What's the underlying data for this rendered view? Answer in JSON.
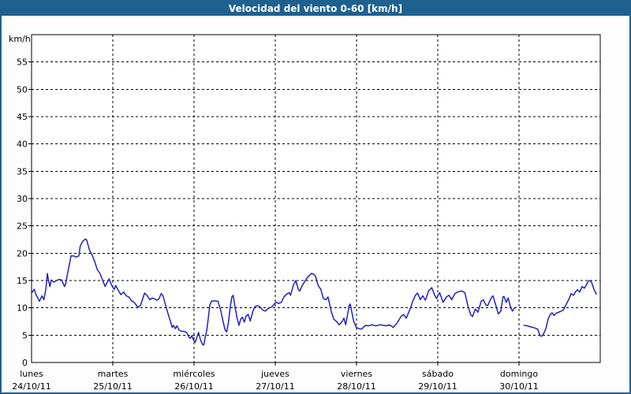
{
  "window": {
    "titlebar_color": "#1f618e",
    "border_color": "#1f618e",
    "background_color": "#fcfdfc"
  },
  "chart_data": {
    "type": "line",
    "title": "Velocidad del viento 0-60 [km/h]",
    "ylabel": "km/h",
    "xlabel": "",
    "ylim": [
      0,
      60
    ],
    "yticks": [
      0,
      5,
      10,
      15,
      20,
      25,
      30,
      35,
      40,
      45,
      50,
      55
    ],
    "xlim_days": [
      0,
      7
    ],
    "x_ticks": [
      {
        "day": 0,
        "label": "lunes",
        "date": "24/10/11"
      },
      {
        "day": 1,
        "label": "martes",
        "date": "25/10/11"
      },
      {
        "day": 2,
        "label": "miércoles",
        "date": "26/10/11"
      },
      {
        "day": 3,
        "label": "jueves",
        "date": "27/10/11"
      },
      {
        "day": 4,
        "label": "viernes",
        "date": "28/10/11"
      },
      {
        "day": 5,
        "label": "sábado",
        "date": "29/10/11"
      },
      {
        "day": 6,
        "label": "domingo",
        "date": "30/10/11"
      }
    ],
    "grid": true,
    "legend": "none",
    "line_color": "#2222bb",
    "plot_background": "#ffffff",
    "series": [
      {
        "name": "velocidad del viento",
        "unit": "km/h",
        "segments": [
          [
            [
              0.0,
              12.7
            ],
            [
              0.032,
              13.4
            ],
            [
              0.055,
              12.4
            ],
            [
              0.081,
              11.7
            ],
            [
              0.097,
              11.2
            ],
            [
              0.129,
              12.2
            ],
            [
              0.152,
              11.5
            ],
            [
              0.178,
              13.6
            ],
            [
              0.194,
              16.3
            ],
            [
              0.211,
              14.9
            ],
            [
              0.226,
              13.9
            ],
            [
              0.243,
              15.1
            ],
            [
              0.275,
              14.7
            ],
            [
              0.308,
              15.0
            ],
            [
              0.34,
              15.2
            ],
            [
              0.372,
              15.1
            ],
            [
              0.405,
              13.9
            ],
            [
              0.42,
              14.4
            ],
            [
              0.437,
              15.8
            ],
            [
              0.469,
              18.2
            ],
            [
              0.485,
              19.5
            ],
            [
              0.517,
              19.5
            ],
            [
              0.55,
              19.3
            ],
            [
              0.583,
              19.5
            ],
            [
              0.599,
              21.3
            ],
            [
              0.631,
              22.2
            ],
            [
              0.663,
              22.6
            ],
            [
              0.68,
              22.4
            ],
            [
              0.712,
              20.6
            ],
            [
              0.745,
              19.7
            ],
            [
              0.777,
              18.5
            ],
            [
              0.809,
              17.0
            ],
            [
              0.842,
              16.3
            ],
            [
              0.874,
              15.1
            ],
            [
              0.906,
              13.9
            ],
            [
              0.939,
              14.9
            ],
            [
              0.954,
              15.3
            ],
            [
              0.987,
              14.1
            ],
            [
              1.003,
              13.7
            ],
            [
              1.019,
              13.4
            ],
            [
              1.036,
              14.1
            ],
            [
              1.068,
              13.2
            ],
            [
              1.1,
              12.4
            ],
            [
              1.133,
              12.9
            ],
            [
              1.165,
              12.2
            ],
            [
              1.197,
              12.0
            ],
            [
              1.23,
              11.3
            ],
            [
              1.262,
              11.0
            ],
            [
              1.311,
              10.1
            ],
            [
              1.343,
              10.5
            ],
            [
              1.391,
              12.7
            ],
            [
              1.424,
              12.2
            ],
            [
              1.456,
              11.5
            ],
            [
              1.489,
              11.8
            ],
            [
              1.521,
              11.6
            ],
            [
              1.546,
              11.4
            ],
            [
              1.57,
              11.7
            ],
            [
              1.595,
              12.6
            ],
            [
              1.618,
              12.2
            ],
            [
              1.65,
              10.5
            ],
            [
              1.683,
              8.8
            ],
            [
              1.715,
              7.3
            ],
            [
              1.731,
              6.4
            ],
            [
              1.748,
              6.8
            ],
            [
              1.77,
              6.2
            ],
            [
              1.789,
              6.7
            ],
            [
              1.813,
              6.0
            ],
            [
              1.845,
              5.7
            ],
            [
              1.877,
              5.7
            ],
            [
              1.91,
              5.5
            ],
            [
              1.932,
              4.8
            ],
            [
              1.951,
              4.4
            ],
            [
              1.974,
              4.9
            ],
            [
              1.99,
              4.2
            ],
            [
              2.016,
              3.7
            ],
            [
              2.039,
              4.8
            ],
            [
              2.055,
              5.5
            ],
            [
              2.081,
              4.1
            ],
            [
              2.104,
              3.3
            ],
            [
              2.119,
              3.2
            ],
            [
              2.136,
              4.5
            ],
            [
              2.158,
              6.0
            ],
            [
              2.178,
              8.4
            ],
            [
              2.194,
              10.5
            ],
            [
              2.214,
              11.2
            ],
            [
              2.246,
              11.3
            ],
            [
              2.294,
              11.2
            ],
            [
              2.327,
              9.6
            ],
            [
              2.359,
              7.4
            ],
            [
              2.382,
              6.0
            ],
            [
              2.401,
              5.6
            ],
            [
              2.424,
              7.4
            ],
            [
              2.447,
              10.3
            ],
            [
              2.466,
              12.0
            ],
            [
              2.483,
              12.3
            ],
            [
              2.505,
              10.1
            ],
            [
              2.531,
              8.1
            ],
            [
              2.553,
              6.8
            ],
            [
              2.576,
              8.0
            ],
            [
              2.595,
              8.3
            ],
            [
              2.618,
              7.4
            ],
            [
              2.641,
              8.5
            ],
            [
              2.667,
              8.8
            ],
            [
              2.692,
              7.6
            ],
            [
              2.725,
              9.4
            ],
            [
              2.748,
              10.2
            ],
            [
              2.78,
              10.4
            ],
            [
              2.812,
              10.2
            ],
            [
              2.845,
              9.6
            ],
            [
              2.877,
              9.4
            ],
            [
              2.913,
              9.9
            ],
            [
              2.961,
              10.2
            ],
            [
              2.993,
              10.8
            ],
            [
              3.01,
              11.0
            ],
            [
              3.042,
              10.8
            ],
            [
              3.075,
              11.0
            ],
            [
              3.107,
              12.0
            ],
            [
              3.139,
              12.5
            ],
            [
              3.172,
              12.8
            ],
            [
              3.188,
              12.3
            ],
            [
              3.221,
              14.1
            ],
            [
              3.252,
              15.0
            ],
            [
              3.285,
              13.3
            ],
            [
              3.301,
              13.1
            ],
            [
              3.333,
              14.1
            ],
            [
              3.366,
              14.9
            ],
            [
              3.398,
              15.6
            ],
            [
              3.43,
              16.1
            ],
            [
              3.447,
              16.3
            ],
            [
              3.479,
              16.1
            ],
            [
              3.495,
              15.8
            ],
            [
              3.527,
              14.1
            ],
            [
              3.56,
              13.4
            ],
            [
              3.592,
              11.7
            ],
            [
              3.624,
              11.5
            ],
            [
              3.65,
              12.0
            ],
            [
              3.689,
              9.3
            ],
            [
              3.721,
              7.9
            ],
            [
              3.754,
              7.5
            ],
            [
              3.786,
              6.9
            ],
            [
              3.818,
              7.4
            ],
            [
              3.845,
              8.1
            ],
            [
              3.867,
              6.9
            ],
            [
              3.91,
              10.4
            ],
            [
              3.922,
              10.7
            ],
            [
              3.964,
              7.6
            ],
            [
              3.997,
              6.4
            ],
            [
              4.029,
              6.2
            ],
            [
              4.061,
              6.1
            ],
            [
              4.11,
              6.8
            ],
            [
              4.146,
              6.7
            ],
            [
              4.191,
              6.9
            ],
            [
              4.24,
              6.7
            ],
            [
              4.288,
              6.9
            ],
            [
              4.337,
              6.8
            ],
            [
              4.369,
              6.7
            ],
            [
              4.401,
              6.9
            ],
            [
              4.437,
              6.6
            ],
            [
              4.45,
              6.4
            ],
            [
              4.498,
              7.2
            ],
            [
              4.547,
              8.4
            ],
            [
              4.58,
              8.8
            ],
            [
              4.612,
              8.1
            ],
            [
              4.66,
              9.8
            ],
            [
              4.692,
              11.2
            ],
            [
              4.725,
              12.3
            ],
            [
              4.751,
              12.7
            ],
            [
              4.784,
              11.5
            ],
            [
              4.816,
              12.2
            ],
            [
              4.848,
              11.4
            ],
            [
              4.887,
              13.1
            ],
            [
              4.926,
              13.7
            ],
            [
              4.959,
              12.4
            ],
            [
              4.984,
              11.7
            ],
            [
              5.023,
              12.8
            ],
            [
              5.065,
              11.0
            ],
            [
              5.107,
              12.0
            ],
            [
              5.139,
              12.3
            ],
            [
              5.172,
              11.5
            ],
            [
              5.211,
              12.6
            ],
            [
              5.243,
              12.9
            ],
            [
              5.291,
              13.1
            ],
            [
              5.333,
              12.8
            ],
            [
              5.372,
              10.3
            ],
            [
              5.405,
              8.8
            ],
            [
              5.427,
              8.4
            ],
            [
              5.463,
              9.8
            ],
            [
              5.495,
              9.2
            ],
            [
              5.534,
              11.2
            ],
            [
              5.56,
              11.5
            ],
            [
              5.592,
              10.5
            ],
            [
              5.615,
              10.4
            ],
            [
              5.657,
              11.8
            ],
            [
              5.68,
              12.2
            ],
            [
              5.722,
              10.1
            ],
            [
              5.745,
              8.9
            ],
            [
              5.777,
              9.4
            ],
            [
              5.803,
              12.0
            ],
            [
              5.816,
              12.1
            ],
            [
              5.842,
              11.0
            ],
            [
              5.867,
              11.8
            ],
            [
              5.9,
              9.9
            ],
            [
              5.92,
              9.4
            ],
            [
              5.939,
              9.9
            ],
            [
              5.955,
              10.1
            ]
          ],
          [
            [
              6.062,
              6.8
            ],
            [
              6.1,
              6.7
            ],
            [
              6.149,
              6.5
            ],
            [
              6.197,
              6.3
            ],
            [
              6.23,
              6.1
            ],
            [
              6.256,
              5.0
            ],
            [
              6.269,
              4.8
            ],
            [
              6.289,
              4.9
            ],
            [
              6.311,
              5.5
            ],
            [
              6.333,
              6.3
            ],
            [
              6.359,
              8.0
            ],
            [
              6.386,
              8.8
            ],
            [
              6.408,
              9.1
            ],
            [
              6.43,
              8.6
            ],
            [
              6.456,
              9.0
            ],
            [
              6.505,
              9.3
            ],
            [
              6.547,
              9.6
            ],
            [
              6.586,
              10.8
            ],
            [
              6.618,
              11.7
            ],
            [
              6.641,
              12.6
            ],
            [
              6.67,
              12.3
            ],
            [
              6.699,
              13.0
            ],
            [
              6.718,
              13.3
            ],
            [
              6.748,
              12.9
            ],
            [
              6.777,
              13.9
            ],
            [
              6.806,
              13.6
            ],
            [
              6.854,
              14.9
            ],
            [
              6.874,
              15.0
            ],
            [
              6.893,
              14.7
            ],
            [
              6.922,
              13.4
            ],
            [
              6.951,
              12.5
            ]
          ]
        ]
      }
    ]
  }
}
